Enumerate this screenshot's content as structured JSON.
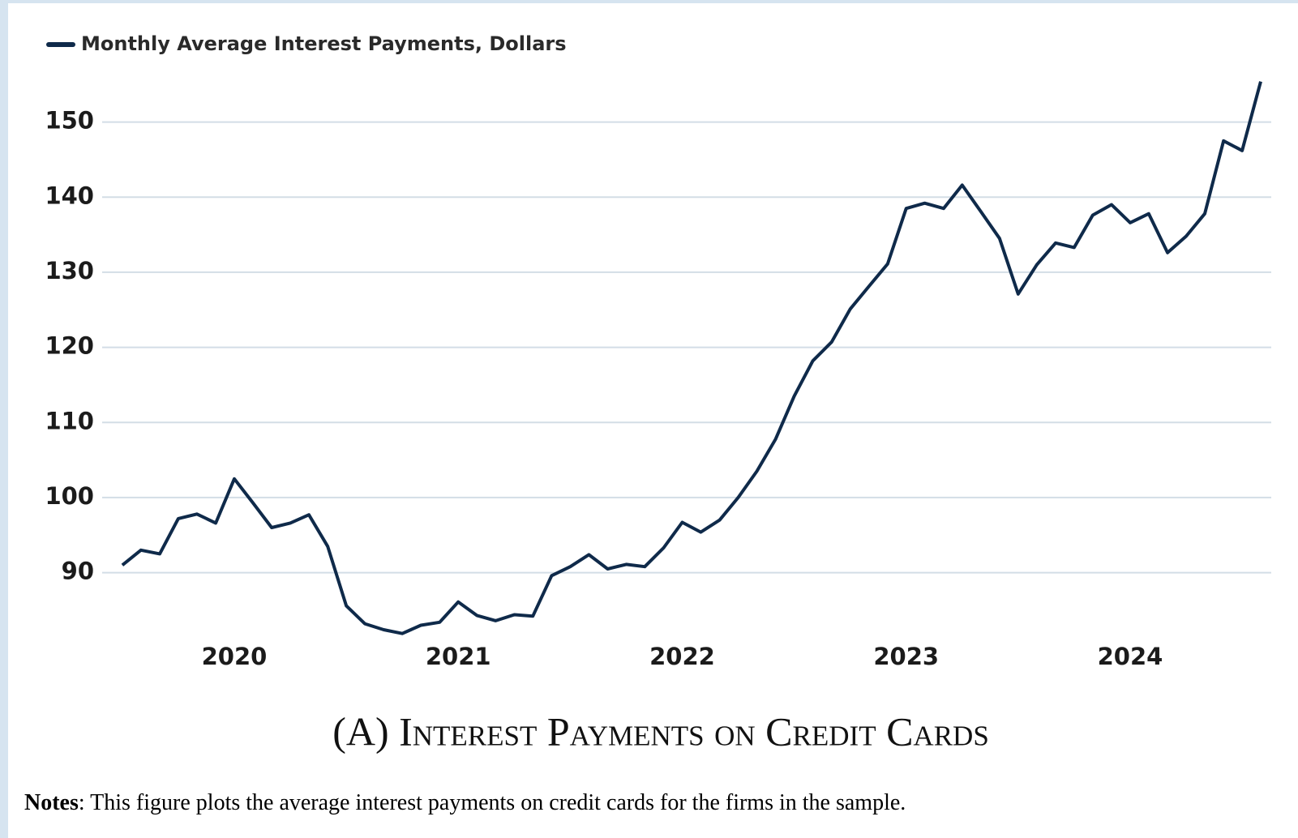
{
  "chart_data": {
    "type": "line",
    "title": "(A) Interest Payments on Credit Cards",
    "x": [
      2019.5,
      2019.583,
      2019.667,
      2019.75,
      2019.833,
      2019.917,
      2020.0,
      2020.083,
      2020.167,
      2020.25,
      2020.333,
      2020.417,
      2020.5,
      2020.583,
      2020.667,
      2020.75,
      2020.833,
      2020.917,
      2021.0,
      2021.083,
      2021.167,
      2021.25,
      2021.333,
      2021.417,
      2021.5,
      2021.583,
      2021.667,
      2021.75,
      2021.833,
      2021.917,
      2022.0,
      2022.083,
      2022.167,
      2022.25,
      2022.333,
      2022.417,
      2022.5,
      2022.583,
      2022.667,
      2022.75,
      2022.833,
      2022.917,
      2023.0,
      2023.083,
      2023.167,
      2023.25,
      2023.333,
      2023.417,
      2023.5,
      2023.583,
      2023.667,
      2023.75,
      2023.833,
      2023.917,
      2024.0,
      2024.083,
      2024.167,
      2024.25,
      2024.333,
      2024.417,
      2024.5,
      2024.583
    ],
    "series": [
      {
        "name": "Monthly Average Interest Payments, Dollars",
        "color": "#0f2a4a",
        "values": [
          91.0,
          93.0,
          92.5,
          97.2,
          97.8,
          96.6,
          102.5,
          99.3,
          96.0,
          96.6,
          97.7,
          93.5,
          85.6,
          83.2,
          82.4,
          81.9,
          83.0,
          83.4,
          86.1,
          84.3,
          83.6,
          84.4,
          84.2,
          89.6,
          90.8,
          92.4,
          90.5,
          91.1,
          90.8,
          93.3,
          96.7,
          95.4,
          97.0,
          100.0,
          103.5,
          107.8,
          113.5,
          118.2,
          120.7,
          125.1,
          128.1,
          131.1,
          138.5,
          139.2,
          138.5,
          141.6,
          138.1,
          134.5,
          127.1,
          131.0,
          133.9,
          133.3,
          137.6,
          139.0,
          136.6,
          137.8,
          132.6,
          134.8,
          137.8,
          147.5,
          146.2,
          155.4
        ]
      }
    ],
    "xlim": [
      2019.41,
      2024.63
    ],
    "xticks": [
      2020,
      2021,
      2022,
      2023,
      2024
    ],
    "ylim": [
      81,
      156
    ],
    "yticks": [
      90,
      100,
      110,
      120,
      130,
      140,
      150
    ],
    "grid": true,
    "legend": "top-left"
  },
  "notes": {
    "label": "Notes",
    "text": ": This figure plots the average interest payments on credit cards for the firms in the sample."
  }
}
